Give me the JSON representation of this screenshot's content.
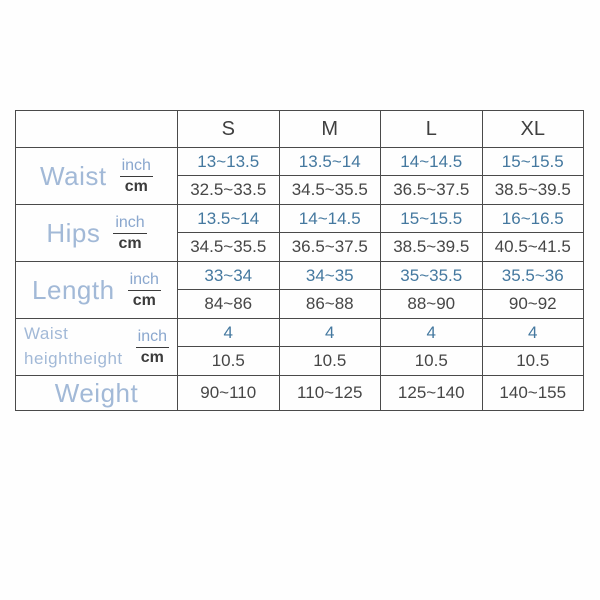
{
  "page": {
    "background": "#fefefe"
  },
  "colors": {
    "border": "#4a4a4a",
    "header_text": "#3f3f3f",
    "inch_value_blue": "#44789f",
    "cm_value_dark": "#464646",
    "row_label_blue": "#a2b9d7",
    "unit_inch_blue": "#8aa7ce",
    "unit_cm_dark": "#3b3b3b"
  },
  "chart_data": {
    "type": "table",
    "column_headers": [
      "S",
      "M",
      "L",
      "XL"
    ],
    "unit_top": "inch",
    "unit_bottom": "cm",
    "measurements": [
      {
        "label_lines": [
          "Waist"
        ],
        "inch_values": [
          "13~13.5",
          "13.5~14",
          "14~14.5",
          "15~15.5"
        ],
        "cm_values": [
          "32.5~33.5",
          "34.5~35.5",
          "36.5~37.5",
          "38.5~39.5"
        ]
      },
      {
        "label_lines": [
          "Hips"
        ],
        "inch_values": [
          "13.5~14",
          "14~14.5",
          "15~15.5",
          "16~16.5"
        ],
        "cm_values": [
          "34.5~35.5",
          "36.5~37.5",
          "38.5~39.5",
          "40.5~41.5"
        ]
      },
      {
        "label_lines": [
          "Length"
        ],
        "inch_values": [
          "33~34",
          "34~35",
          "35~35.5",
          "35.5~36"
        ],
        "cm_values": [
          "84~86",
          "86~88",
          "88~90",
          "90~92"
        ]
      },
      {
        "label_lines": [
          "Waist",
          "heightheight"
        ],
        "inch_values": [
          "4",
          "4",
          "4",
          "4"
        ],
        "cm_values": [
          "10.5",
          "10.5",
          "10.5",
          "10.5"
        ]
      }
    ],
    "weight_row": {
      "label": "Weight",
      "values": [
        "90~110",
        "110~125",
        "125~140",
        "140~155"
      ]
    }
  }
}
